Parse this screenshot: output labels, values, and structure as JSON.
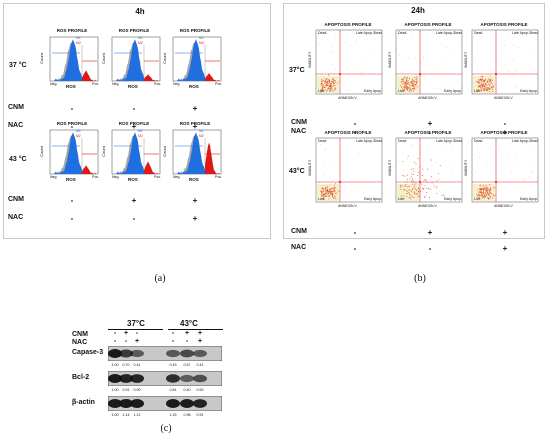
{
  "panel_a": {
    "time_label": "4h",
    "plot_title": "ROS PROFILE",
    "x_label": "ROS",
    "y_label": "Count",
    "neg_label": "Neg.",
    "pos_label": "Pos.",
    "m1_label": "M1",
    "m2_label": "M2",
    "row1": {
      "temp": "37 °C"
    },
    "row2": {
      "temp": "43 °C"
    },
    "treat_labels": {
      "cnm": "CNM",
      "nac": "NAC"
    },
    "row1_treatments": {
      "cnm": [
        "-",
        "-",
        "+"
      ],
      "nac": [
        "-",
        "+",
        "+"
      ]
    },
    "row2_treatments": {
      "cnm": [
        "-",
        "+",
        "+"
      ],
      "nac": [
        "-",
        "-",
        "+"
      ]
    },
    "caption": "(a)"
  },
  "panel_b": {
    "time_label": "24h",
    "plot_title": "APOPTOSIS PROFILE",
    "x_label": "ANNEXIN V",
    "y_label": "VIABILITY",
    "quad_dead": "Dead",
    "quad_late": "Late Apop./Dead",
    "quad_live": "Live",
    "quad_early": "Early Apop.",
    "row1": {
      "temp": "37°C"
    },
    "row2": {
      "temp": "43°C"
    },
    "treat_labels": {
      "cnm": "CNM",
      "nac": "NAC"
    },
    "row1_treatments": {
      "cnm": [
        "-",
        "+",
        "-"
      ],
      "nac": [
        "-",
        "-",
        "+"
      ]
    },
    "row2_treatments": {
      "cnm": [
        "-",
        "+",
        "+"
      ],
      "nac": [
        "-",
        "-",
        "+"
      ]
    },
    "caption": "(b)"
  },
  "panel_c": {
    "temp_37": "37°C",
    "temp_43": "43°C",
    "cnm_label": "CNM",
    "nac_label": "NAC",
    "cnm_signs": [
      "-",
      "+",
      "-",
      "-",
      "+",
      "+"
    ],
    "nac_signs": [
      "-",
      "-",
      "+",
      "-",
      "-",
      "+"
    ],
    "rows": [
      {
        "name": "Capase-3",
        "values": [
          "1.00",
          "0.70",
          "0.41",
          "0.43",
          "0.57",
          "0.41"
        ]
      },
      {
        "name": "Bcl-2",
        "values": [
          "1.00",
          "0.91",
          "0.90",
          "0.81",
          "0.40",
          "0.53"
        ]
      },
      {
        "name": "β-actin",
        "values": [
          "1.00",
          "1.14",
          "1.12",
          "1.15",
          "0.98",
          "0.91"
        ]
      }
    ],
    "caption": "(c)"
  },
  "colors": {
    "histogram_blue": "#1f6fe0",
    "histogram_red": "#e01818",
    "histogram_grey": "#8a8a8a",
    "quad_line": "#e23030",
    "live_box": "#f3efc8",
    "dot_red": "#e24a2a"
  }
}
